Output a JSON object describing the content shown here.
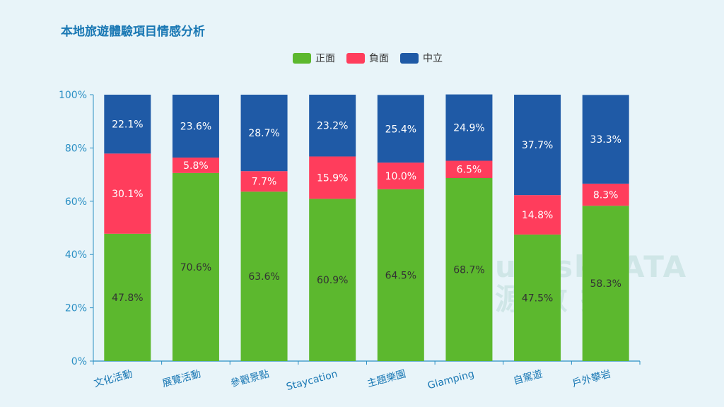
{
  "chart_data": {
    "type": "bar",
    "stacked": true,
    "title": "本地旅遊體驗項目情感分析",
    "categories": [
      "文化活動",
      "展覽活動",
      "參觀景點",
      "Staycation",
      "主題樂園",
      "Glamping",
      "自駕遊",
      "戶外攀岩"
    ],
    "series": [
      {
        "name": "正面",
        "color": "#5cb82e",
        "values": [
          47.8,
          70.6,
          63.6,
          60.9,
          64.5,
          68.7,
          47.5,
          58.3
        ]
      },
      {
        "name": "負面",
        "color": "#ff3d5c",
        "values": [
          30.1,
          5.8,
          7.7,
          15.9,
          10.0,
          6.5,
          14.8,
          8.3
        ]
      },
      {
        "name": "中立",
        "color": "#1f5aa6",
        "values": [
          22.1,
          23.6,
          28.7,
          23.2,
          25.4,
          24.9,
          37.7,
          33.3
        ]
      }
    ],
    "ylim": [
      0,
      100
    ],
    "yticks": [
      "0%",
      "20%",
      "40%",
      "60%",
      "80%",
      "100%"
    ],
    "ytick_values": [
      0,
      20,
      40,
      60,
      80,
      100
    ],
    "value_suffix": "%",
    "legend_position": "top-center",
    "xlabel": "",
    "ylabel": ""
  },
  "watermark": {
    "line1": "uDiskDATA",
    "line2": "源 數 據"
  }
}
